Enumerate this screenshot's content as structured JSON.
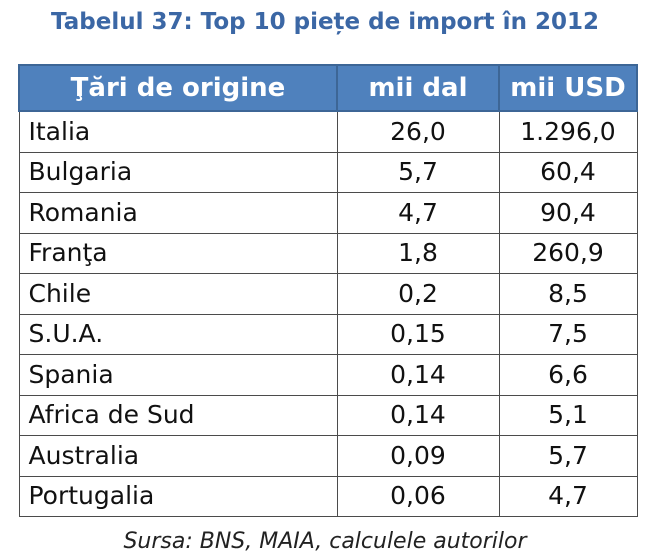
{
  "title": "Tabelul 37: Top 10 piețe de import în 2012",
  "table": {
    "headers": [
      "Ţări de origine",
      "mii dal",
      "mii USD"
    ],
    "rows": [
      {
        "country": "Italia",
        "mii_dal": "26,0",
        "mii_usd": "1.296,0"
      },
      {
        "country": "Bulgaria",
        "mii_dal": "5,7",
        "mii_usd": "60,4"
      },
      {
        "country": "Romania",
        "mii_dal": "4,7",
        "mii_usd": "90,4"
      },
      {
        "country": "Franţa",
        "mii_dal": "1,8",
        "mii_usd": "260,9"
      },
      {
        "country": "Chile",
        "mii_dal": "0,2",
        "mii_usd": "8,5"
      },
      {
        "country": "S.U.A.",
        "mii_dal": "0,15",
        "mii_usd": "7,5"
      },
      {
        "country": "Spania",
        "mii_dal": "0,14",
        "mii_usd": "6,6"
      },
      {
        "country": "Africa de Sud",
        "mii_dal": "0,14",
        "mii_usd": "5,1"
      },
      {
        "country": "Australia",
        "mii_dal": "0,09",
        "mii_usd": "5,7"
      },
      {
        "country": "Portugalia",
        "mii_dal": "0,06",
        "mii_usd": "4,7"
      }
    ]
  },
  "source": "Sursa: BNS, MAIA, calculele autorilor"
}
